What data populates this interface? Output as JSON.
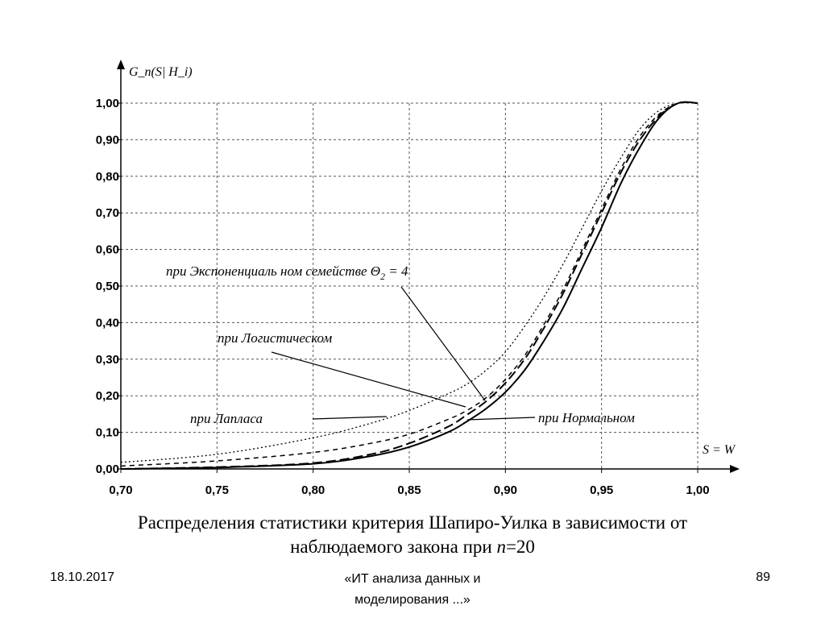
{
  "chart_data": {
    "type": "line",
    "ylabel": "G_n(S| H_i)",
    "xlabel": "S = W",
    "xlim": [
      0.7,
      1.0
    ],
    "ylim": [
      0.0,
      1.0
    ],
    "x_ticks": [
      "0,70",
      "0,75",
      "0,80",
      "0,85",
      "0,90",
      "0,95",
      "1,00"
    ],
    "y_ticks": [
      "0,00",
      "0,10",
      "0,20",
      "0,30",
      "0,40",
      "0,50",
      "0,60",
      "0,70",
      "0,80",
      "0,90",
      "1,00"
    ],
    "grid": true,
    "annotations": [
      {
        "text": "при Экспоненциаль ном семействе Θ",
        "sub": "2",
        "suffix": " = 4"
      },
      {
        "text": "при Логистическом"
      },
      {
        "text": "при Лапласа"
      },
      {
        "text": "при Нормальном"
      }
    ],
    "series": [
      {
        "style": "solid",
        "x": [
          0.7,
          0.75,
          0.8,
          0.83,
          0.85,
          0.87,
          0.88,
          0.89,
          0.9,
          0.91,
          0.92,
          0.93,
          0.94,
          0.95,
          0.96,
          0.97,
          0.98,
          0.99,
          1.0
        ],
        "y": [
          0.0,
          0.004,
          0.014,
          0.035,
          0.06,
          0.1,
          0.13,
          0.165,
          0.21,
          0.27,
          0.35,
          0.44,
          0.55,
          0.66,
          0.78,
          0.88,
          0.96,
          1.0,
          1.0
        ]
      },
      {
        "style": "long-dash",
        "x": [
          0.7,
          0.75,
          0.8,
          0.83,
          0.85,
          0.87,
          0.88,
          0.89,
          0.9,
          0.91,
          0.92,
          0.93,
          0.94,
          0.95,
          0.96,
          0.97,
          0.98,
          0.99,
          1.0
        ],
        "y": [
          0.0,
          0.005,
          0.016,
          0.04,
          0.07,
          0.115,
          0.148,
          0.185,
          0.235,
          0.3,
          0.385,
          0.48,
          0.59,
          0.7,
          0.81,
          0.9,
          0.965,
          1.0,
          1.0
        ]
      },
      {
        "style": "dash",
        "x": [
          0.7,
          0.75,
          0.8,
          0.83,
          0.85,
          0.87,
          0.88,
          0.89,
          0.9,
          0.91,
          0.92,
          0.93,
          0.94,
          0.95,
          0.96,
          0.97,
          0.98,
          0.99,
          1.0
        ],
        "y": [
          0.008,
          0.022,
          0.045,
          0.07,
          0.095,
          0.135,
          0.16,
          0.195,
          0.245,
          0.31,
          0.395,
          0.49,
          0.6,
          0.71,
          0.82,
          0.91,
          0.97,
          1.0,
          1.0
        ]
      },
      {
        "style": "dotted",
        "x": [
          0.7,
          0.75,
          0.8,
          0.83,
          0.85,
          0.87,
          0.88,
          0.89,
          0.9,
          0.91,
          0.92,
          0.93,
          0.94,
          0.95,
          0.96,
          0.97,
          0.98,
          0.99,
          1.0
        ],
        "y": [
          0.018,
          0.04,
          0.085,
          0.125,
          0.16,
          0.205,
          0.232,
          0.27,
          0.32,
          0.39,
          0.47,
          0.56,
          0.66,
          0.76,
          0.85,
          0.93,
          0.98,
          1.0,
          1.0
        ]
      }
    ]
  },
  "caption": {
    "line1": "Распределения статистики критерия Шапиро-Уилка в зависимости от",
    "line2_prefix": "наблюдаемого закона  при ",
    "line2_var": "n",
    "line2_suffix": "=20"
  },
  "footer": {
    "date": "18.10.2017",
    "title_line1": "«ИТ анализа данных и",
    "title_line2": "моделирования ...»",
    "page": "89"
  }
}
